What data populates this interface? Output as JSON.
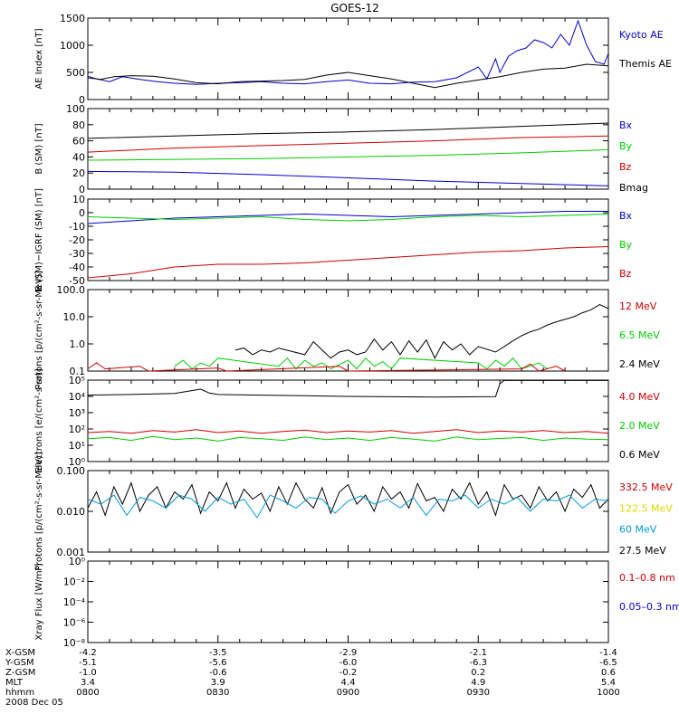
{
  "title": "GOES-12",
  "chart_data": [
    {
      "type": "line",
      "ylabel": "AE Index [nT]",
      "ylim": [
        0,
        1500
      ],
      "yticks": [
        "0",
        "500",
        "1000",
        "1500"
      ],
      "legend": [
        {
          "label": "Kyoto AE",
          "color": "#0000cc"
        },
        {
          "label": "Themis AE",
          "color": "#000000"
        }
      ],
      "series": [
        {
          "name": "Kyoto AE",
          "color": "#0000cc",
          "x": [
            0,
            2,
            5,
            8,
            12,
            16,
            20,
            25,
            30,
            35,
            40,
            45,
            50,
            55,
            60,
            65,
            70,
            75,
            80,
            85,
            90,
            92,
            94,
            95,
            97,
            99,
            101,
            103,
            105,
            107,
            109,
            111,
            113,
            115,
            117,
            119,
            120
          ],
          "values": [
            430,
            380,
            330,
            420,
            370,
            330,
            300,
            280,
            300,
            310,
            330,
            300,
            290,
            330,
            360,
            300,
            290,
            320,
            330,
            400,
            600,
            380,
            750,
            500,
            800,
            900,
            950,
            1100,
            1050,
            950,
            1200,
            1000,
            1450,
            1000,
            700,
            650,
            850
          ]
        },
        {
          "name": "Themis AE",
          "color": "#000000",
          "x": [
            0,
            3,
            6,
            10,
            15,
            20,
            25,
            30,
            35,
            40,
            45,
            50,
            55,
            60,
            65,
            70,
            75,
            80,
            85,
            90,
            95,
            100,
            105,
            110,
            115,
            120
          ],
          "values": [
            400,
            370,
            420,
            440,
            430,
            380,
            310,
            290,
            330,
            340,
            350,
            370,
            450,
            500,
            440,
            380,
            300,
            220,
            300,
            360,
            420,
            500,
            560,
            580,
            650,
            620
          ]
        }
      ]
    },
    {
      "type": "line",
      "ylabel": "B (SM) [nT]",
      "ylim": [
        0,
        100
      ],
      "yticks": [
        "0",
        "20",
        "40",
        "60",
        "80",
        "100"
      ],
      "legend": [
        {
          "label": "Bx",
          "color": "#0000cc"
        },
        {
          "label": "By",
          "color": "#00cc00"
        },
        {
          "label": "Bz",
          "color": "#cc0000"
        },
        {
          "label": "Bmag",
          "color": "#000000"
        }
      ],
      "series": [
        {
          "name": "Bx",
          "color": "#0000cc",
          "x": [
            0,
            20,
            40,
            60,
            80,
            100,
            120
          ],
          "values": [
            22,
            21,
            18,
            14,
            10,
            7,
            4
          ]
        },
        {
          "name": "By",
          "color": "#00cc00",
          "x": [
            0,
            20,
            40,
            60,
            80,
            100,
            120
          ],
          "values": [
            36,
            37,
            38,
            40,
            42,
            45,
            49
          ]
        },
        {
          "name": "Bz",
          "color": "#cc0000",
          "x": [
            0,
            20,
            40,
            60,
            80,
            100,
            120
          ],
          "values": [
            46,
            51,
            54,
            57,
            60,
            64,
            66
          ]
        },
        {
          "name": "Bmag",
          "color": "#000000",
          "x": [
            0,
            20,
            40,
            60,
            80,
            100,
            120
          ],
          "values": [
            63,
            66,
            69,
            71,
            74,
            78,
            82
          ]
        }
      ]
    },
    {
      "type": "line",
      "ylabel": "B (SM)−IGRF (SM) [nT]",
      "ylim": [
        -50,
        10
      ],
      "yticks": [
        "-50",
        "-40",
        "-30",
        "-20",
        "-10",
        "0",
        "10"
      ],
      "legend": [
        {
          "label": "Bx",
          "color": "#0000cc"
        },
        {
          "label": "By",
          "color": "#00cc00"
        },
        {
          "label": "Bz",
          "color": "#cc0000"
        }
      ],
      "series": [
        {
          "name": "Bx",
          "color": "#0000cc",
          "x": [
            0,
            10,
            20,
            30,
            40,
            50,
            60,
            70,
            80,
            90,
            100,
            110,
            120
          ],
          "values": [
            -8,
            -6,
            -4,
            -3,
            -2,
            -1,
            -2,
            -3,
            -2,
            -1,
            0,
            1,
            1
          ]
        },
        {
          "name": "By",
          "color": "#00cc00",
          "x": [
            0,
            10,
            20,
            30,
            40,
            50,
            60,
            70,
            80,
            90,
            100,
            110,
            120
          ],
          "values": [
            -3,
            -4,
            -5,
            -4,
            -3,
            -5,
            -6,
            -5,
            -3,
            -2,
            -3,
            -2,
            -1
          ]
        },
        {
          "name": "Bz",
          "color": "#cc0000",
          "x": [
            0,
            10,
            20,
            30,
            40,
            50,
            60,
            70,
            80,
            90,
            100,
            110,
            120
          ],
          "values": [
            -48,
            -45,
            -40,
            -38,
            -38,
            -37,
            -35,
            -33,
            -31,
            -29,
            -28,
            -26,
            -25
          ]
        }
      ]
    },
    {
      "type": "line",
      "scale": "log",
      "ylabel": "Protons [p/(cm²-s-sr-MeV)]",
      "ylim": [
        0.1,
        100
      ],
      "yticks": [
        "0.1",
        "1.0",
        "10.0",
        "100.0"
      ],
      "legend": [
        {
          "label": "12 MeV",
          "color": "#cc0000"
        },
        {
          "label": "6.5 MeV",
          "color": "#00cc00"
        },
        {
          "label": "2.4 MeV",
          "color": "#000000"
        }
      ],
      "series": [
        {
          "name": "2.4 MeV",
          "color": "#000000",
          "x": [
            34,
            36,
            38,
            40,
            42,
            44,
            50,
            52,
            54,
            56,
            58,
            60,
            62,
            64,
            66,
            68,
            70,
            72,
            74,
            76,
            78,
            80,
            82,
            84,
            86,
            88,
            90,
            94,
            96,
            98,
            100,
            102,
            104,
            106,
            108,
            110,
            112,
            114,
            116,
            118,
            120
          ],
          "values": [
            0.6,
            0.7,
            0.4,
            0.6,
            0.5,
            0.7,
            0.4,
            1.2,
            0.6,
            0.3,
            0.5,
            0.6,
            0.4,
            0.5,
            1.5,
            0.6,
            1.2,
            0.4,
            1.3,
            0.5,
            1.4,
            0.3,
            1.2,
            0.6,
            1.0,
            0.4,
            0.8,
            0.5,
            0.8,
            1.3,
            2.0,
            2.8,
            3.5,
            5.0,
            6.5,
            8.0,
            10,
            14,
            18,
            28,
            20
          ]
        },
        {
          "name": "6.5 MeV",
          "color": "#00cc00",
          "x": [
            20,
            22,
            24,
            26,
            28,
            30,
            44,
            46,
            48,
            50,
            52,
            54,
            56,
            60,
            62,
            64,
            66,
            68,
            70,
            72,
            90,
            92,
            94,
            96,
            98,
            100,
            104,
            106
          ],
          "values": [
            0.15,
            0.25,
            0.12,
            0.2,
            0.15,
            0.3,
            0.15,
            0.3,
            0.12,
            0.25,
            0.15,
            0.2,
            0.12,
            0.25,
            0.12,
            0.3,
            0.15,
            0.22,
            0.12,
            0.3,
            0.2,
            0.12,
            0.25,
            0.15,
            0.3,
            0.12,
            0.2,
            0.12
          ]
        },
        {
          "name": "12 MeV",
          "color": "#cc0000",
          "x": [
            0,
            2,
            4,
            12,
            14,
            30,
            32,
            58,
            60,
            100,
            102,
            104,
            108,
            110
          ],
          "values": [
            0.12,
            0.2,
            0.12,
            0.15,
            0.1,
            0.13,
            0.1,
            0.15,
            0.1,
            0.12,
            0.18,
            0.1,
            0.15,
            0.1
          ]
        }
      ]
    },
    {
      "type": "line",
      "scale": "log",
      "ylabel": "Electrons [e/(cm²-s-sr)]",
      "ylim": [
        1,
        100000
      ],
      "yticks": [
        "10⁰",
        "10¹",
        "10²",
        "10³",
        "10⁴",
        "10⁵"
      ],
      "legend": [
        {
          "label": "4.0 MeV",
          "color": "#cc0000"
        },
        {
          "label": "2.0 MeV",
          "color": "#00cc00"
        },
        {
          "label": "0.6 MeV",
          "color": "#000000"
        }
      ],
      "series": [
        {
          "name": "0.6 MeV",
          "color": "#000000",
          "x": [
            0,
            10,
            20,
            26,
            28,
            30,
            40,
            50,
            60,
            70,
            80,
            90,
            94,
            95,
            96,
            100,
            110,
            120
          ],
          "values": [
            12000,
            13000,
            15000,
            28000,
            16000,
            13000,
            12000,
            11000,
            10000,
            9500,
            9000,
            9500,
            9800,
            60000,
            95000,
            95000,
            95000,
            95000
          ]
        },
        {
          "name": "4.0 MeV",
          "color": "#cc0000",
          "x": [
            0,
            5,
            10,
            15,
            20,
            25,
            30,
            35,
            40,
            45,
            50,
            55,
            60,
            65,
            70,
            75,
            80,
            85,
            90,
            95,
            100,
            105,
            110,
            115,
            120
          ],
          "values": [
            60,
            70,
            55,
            80,
            65,
            90,
            60,
            75,
            55,
            70,
            85,
            60,
            75,
            65,
            80,
            55,
            70,
            90,
            60,
            75,
            65,
            80,
            60,
            70,
            55
          ]
        },
        {
          "name": "2.0 MeV",
          "color": "#00cc00",
          "x": [
            0,
            5,
            10,
            15,
            20,
            25,
            30,
            35,
            40,
            45,
            50,
            55,
            60,
            65,
            70,
            75,
            80,
            85,
            90,
            95,
            100,
            105,
            110,
            115,
            120
          ],
          "values": [
            25,
            30,
            20,
            35,
            22,
            28,
            18,
            30,
            25,
            20,
            32,
            22,
            28,
            20,
            30,
            24,
            18,
            32,
            22,
            26,
            30,
            20,
            28,
            24,
            22
          ]
        }
      ]
    },
    {
      "type": "line",
      "scale": "log",
      "ylabel": "Protons [p/(cm²-s-sr-MeV)]",
      "ylim": [
        0.001,
        0.1
      ],
      "yticks": [
        "0.001",
        "0.010",
        "0.100"
      ],
      "legend": [
        {
          "label": "332.5 MeV",
          "color": "#cc0000"
        },
        {
          "label": "122.5 MeV",
          "color": "#e6d800"
        },
        {
          "label": "60 MeV",
          "color": "#0099dd"
        },
        {
          "label": "27.5 MeV",
          "color": "#000000"
        }
      ],
      "series": [
        {
          "name": "27.5 MeV",
          "color": "#000000",
          "x": [
            0,
            2,
            4,
            6,
            8,
            10,
            12,
            14,
            16,
            18,
            20,
            22,
            24,
            26,
            28,
            30,
            32,
            34,
            36,
            38,
            40,
            42,
            44,
            46,
            48,
            50,
            52,
            54,
            56,
            58,
            60,
            62,
            64,
            66,
            68,
            70,
            72,
            74,
            76,
            78,
            80,
            82,
            84,
            86,
            88,
            90,
            92,
            94,
            96,
            98,
            100,
            102,
            104,
            106,
            108,
            110,
            112,
            114,
            116,
            118,
            120
          ],
          "values": [
            0.012,
            0.03,
            0.008,
            0.04,
            0.015,
            0.05,
            0.01,
            0.025,
            0.04,
            0.012,
            0.03,
            0.02,
            0.045,
            0.009,
            0.03,
            0.018,
            0.05,
            0.012,
            0.035,
            0.02,
            0.028,
            0.01,
            0.04,
            0.015,
            0.05,
            0.02,
            0.012,
            0.038,
            0.009,
            0.03,
            0.045,
            0.015,
            0.025,
            0.01,
            0.04,
            0.02,
            0.03,
            0.012,
            0.048,
            0.018,
            0.022,
            0.01,
            0.035,
            0.02,
            0.05,
            0.015,
            0.03,
            0.008,
            0.045,
            0.02,
            0.025,
            0.012,
            0.04,
            0.018,
            0.03,
            0.01,
            0.035,
            0.022,
            0.045,
            0.012,
            0.02
          ]
        },
        {
          "name": "60 MeV",
          "color": "#0099dd",
          "x": [
            0,
            3,
            6,
            9,
            12,
            15,
            18,
            21,
            24,
            27,
            30,
            33,
            36,
            39,
            42,
            45,
            48,
            51,
            54,
            57,
            60,
            63,
            66,
            69,
            72,
            75,
            78,
            81,
            84,
            87,
            90,
            93,
            96,
            99,
            102,
            105,
            108,
            111,
            114,
            117,
            120
          ],
          "values": [
            0.02,
            0.015,
            0.025,
            0.008,
            0.022,
            0.018,
            0.012,
            0.025,
            0.02,
            0.01,
            0.022,
            0.015,
            0.02,
            0.007,
            0.025,
            0.018,
            0.012,
            0.022,
            0.02,
            0.009,
            0.018,
            0.024,
            0.015,
            0.02,
            0.012,
            0.022,
            0.008,
            0.02,
            0.018,
            0.025,
            0.012,
            0.02,
            0.015,
            0.022,
            0.01,
            0.02,
            0.018,
            0.025,
            0.012,
            0.02,
            0.018
          ]
        }
      ]
    },
    {
      "type": "line",
      "scale": "log",
      "ylabel": "Xray Flux [W/m²]",
      "ylim": [
        1e-09,
        1
      ],
      "yticks": [
        "10⁻⁸",
        "10⁻⁶",
        "10⁻⁴",
        "10⁻²",
        "10⁰"
      ],
      "legend": [
        {
          "label": "0.1–0.8 nm",
          "color": "#cc0000"
        },
        {
          "label": "0.05–0.3 nm",
          "color": "#0000cc"
        }
      ],
      "series": []
    }
  ],
  "x_axis": {
    "row_labels": [
      "X-GSM",
      "Y-GSM",
      "Z-GSM",
      "MLT",
      "hhmm"
    ],
    "date": "2008 Dec 05",
    "ticks": [
      {
        "t": 0,
        "values": [
          "-4.2",
          "-5.1",
          "-1.0",
          "3.4",
          "0800"
        ]
      },
      {
        "t": 30,
        "values": [
          "-3.5",
          "-5.6",
          "-0.6",
          "3.9",
          "0830"
        ]
      },
      {
        "t": 60,
        "values": [
          "-2.9",
          "-6.0",
          "-0.2",
          "4.4",
          "0900"
        ]
      },
      {
        "t": 90,
        "values": [
          "-2.1",
          "-6.3",
          "0.2",
          "4.9",
          "0930"
        ]
      },
      {
        "t": 120,
        "values": [
          "-1.4",
          "-6.5",
          "0.6",
          "5.4",
          "1000"
        ]
      }
    ]
  }
}
